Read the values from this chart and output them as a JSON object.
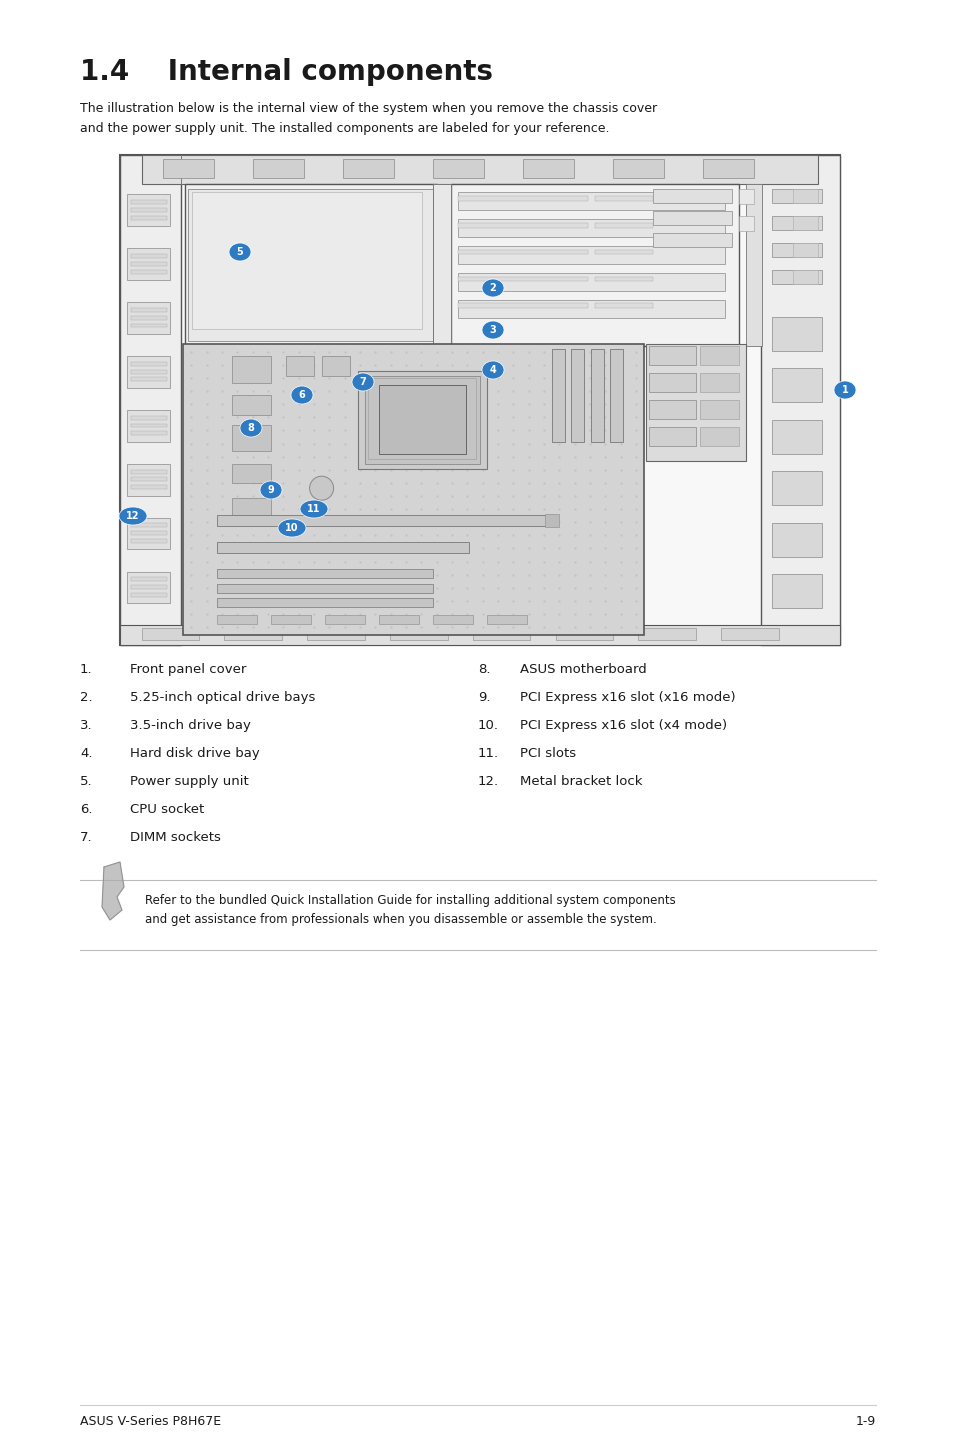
{
  "title": "1.4    Internal components",
  "subtitle": "The illustration below is the internal view of the system when you remove the chassis cover\nand the power supply unit. The installed components are labeled for your reference.",
  "items_left": [
    [
      "1.",
      "Front panel cover"
    ],
    [
      "2.",
      "5.25-inch optical drive bays"
    ],
    [
      "3.",
      "3.5-inch drive bay"
    ],
    [
      "4.",
      "Hard disk drive bay"
    ],
    [
      "5.",
      "Power supply unit"
    ],
    [
      "6.",
      "CPU socket"
    ],
    [
      "7.",
      "DIMM sockets"
    ]
  ],
  "items_right": [
    [
      "8.",
      "ASUS motherboard"
    ],
    [
      "9.",
      "PCI Express x16 slot (x16 mode)"
    ],
    [
      "10.",
      "PCI Express x16 slot (x4 mode)"
    ],
    [
      "11.",
      "PCI slots"
    ],
    [
      "12.",
      "Metal bracket lock"
    ]
  ],
  "note_text": "Refer to the bundled Quick Installation Guide for installing additional system components\nand get assistance from professionals when you disassemble or assemble the system.",
  "footer_left": "ASUS V-Series P8H67E",
  "footer_right": "1-9",
  "bg_color": "#ffffff",
  "text_color": "#1a1a1a",
  "label_color": "#2e7bc4"
}
